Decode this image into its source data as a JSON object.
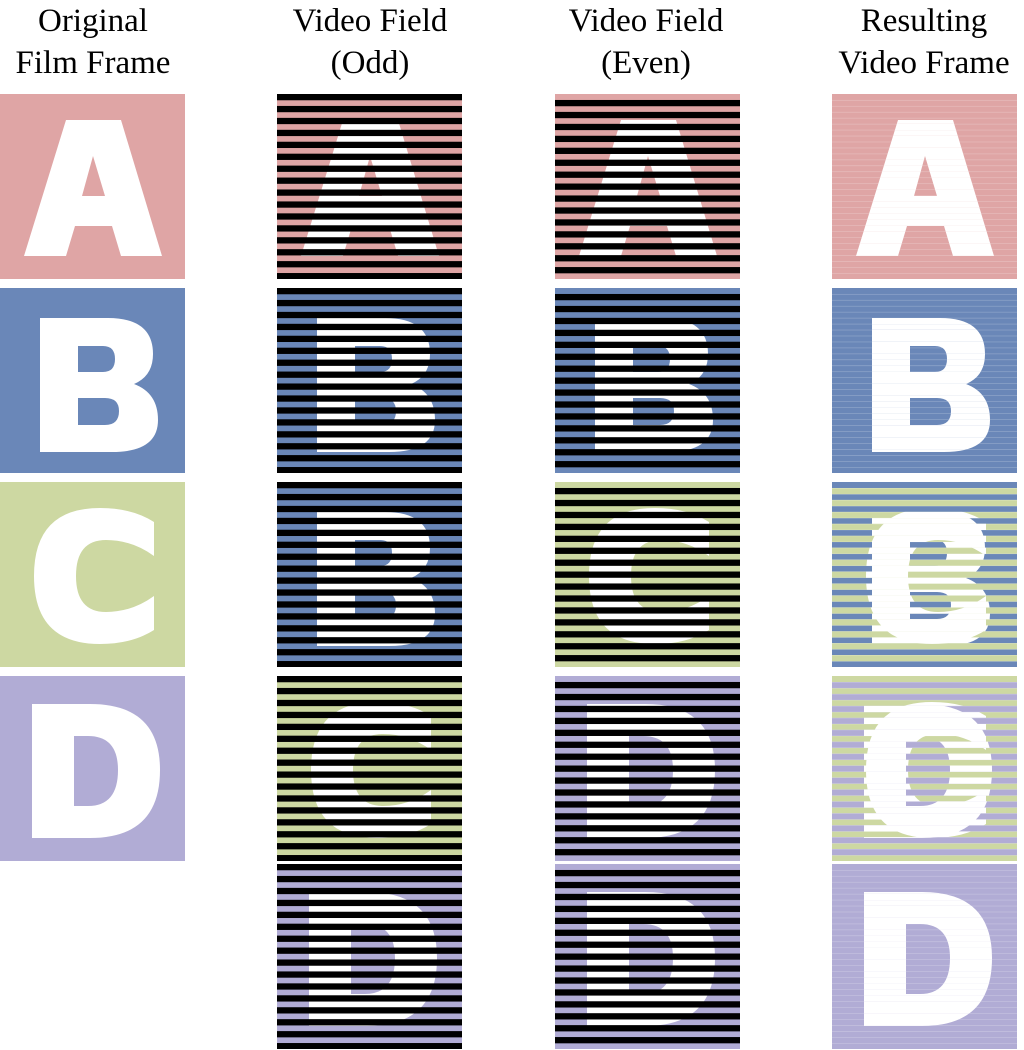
{
  "columns": [
    {
      "id": "film",
      "title_lines": [
        "Original",
        "Film Frame"
      ]
    },
    {
      "id": "odd",
      "title_lines": [
        "Video Field",
        "(Odd)"
      ]
    },
    {
      "id": "even",
      "title_lines": [
        "Video Field",
        "(Even)"
      ]
    },
    {
      "id": "result",
      "title_lines": [
        "Resulting",
        "Video Frame"
      ]
    }
  ],
  "colors": {
    "A": "#dfa5a5",
    "B": "#6a87b8",
    "C": "#cdd8a2",
    "D": "#b1acd5",
    "line": "#000000",
    "letter": "#ffffff"
  },
  "frames": {
    "film": [
      {
        "letter": "A"
      },
      {
        "letter": "B"
      },
      {
        "letter": "C"
      },
      {
        "letter": "D"
      }
    ],
    "odd": [
      {
        "letter": "A"
      },
      {
        "letter": "B"
      },
      {
        "letter": "B"
      },
      {
        "letter": "C"
      },
      {
        "letter": "D"
      }
    ],
    "even": [
      {
        "letter": "A"
      },
      {
        "letter": "B"
      },
      {
        "letter": "C"
      },
      {
        "letter": "D"
      },
      {
        "letter": "D"
      }
    ],
    "result": [
      {
        "a": "A",
        "b": "A"
      },
      {
        "a": "B",
        "b": "B"
      },
      {
        "a": "B",
        "b": "C"
      },
      {
        "a": "C",
        "b": "D"
      },
      {
        "a": "D",
        "b": "D"
      }
    ]
  }
}
